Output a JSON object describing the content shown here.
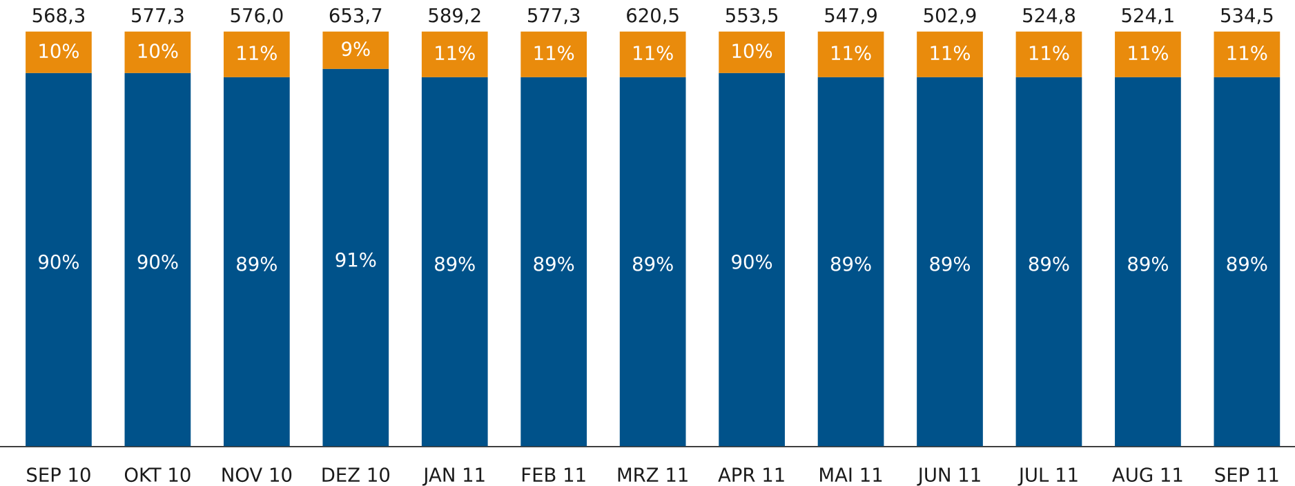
{
  "chart_data": {
    "type": "stacked_bar",
    "categories": [
      "SEP 10",
      "OKT 10",
      "NOV 10",
      "DEZ 10",
      "JAN 11",
      "FEB 11",
      "MRZ 11",
      "APR 11",
      "MAI 11",
      "JUN 11",
      "JUL 11",
      "AUG 11",
      "SEP 11"
    ],
    "series": [
      {
        "color": "#00528a",
        "values": [
          90,
          90,
          89,
          91,
          89,
          89,
          89,
          90,
          89,
          89,
          89,
          89,
          89
        ],
        "value_labels": [
          "90%",
          "90%",
          "89%",
          "91%",
          "89%",
          "89%",
          "89%",
          "90%",
          "89%",
          "89%",
          "89%",
          "89%",
          "89%"
        ]
      },
      {
        "color": "#e98b0c",
        "values": [
          10,
          10,
          11,
          9,
          11,
          11,
          11,
          10,
          11,
          11,
          11,
          11,
          11
        ],
        "value_labels": [
          "10%",
          "10%",
          "11%",
          "9%",
          "11%",
          "11%",
          "11%",
          "10%",
          "11%",
          "11%",
          "11%",
          "11%",
          "11%"
        ]
      }
    ],
    "totals": {
      "values": [
        568.3,
        577.3,
        576.0,
        653.7,
        589.2,
        577.3,
        620.5,
        553.5,
        547.9,
        502.9,
        524.8,
        524.1,
        534.5
      ],
      "value_labels": [
        "568,3",
        "577,3",
        "576,0",
        "653,7",
        "589,2",
        "577,3",
        "620,5",
        "553,5",
        "547,9",
        "502,9",
        "524,8",
        "524,1",
        "534,5"
      ]
    },
    "ylim": [
      0,
      100
    ]
  }
}
